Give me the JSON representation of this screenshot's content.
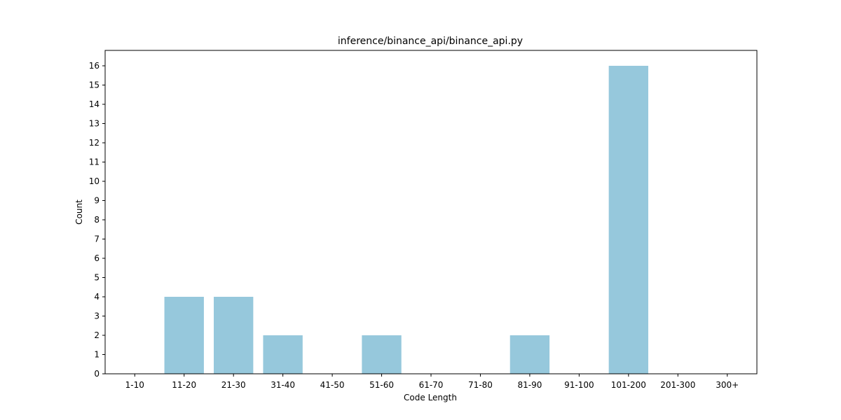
{
  "chart_data": {
    "type": "bar",
    "title": "inference/binance_api/binance_api.py",
    "xlabel": "Code Length",
    "ylabel": "Count",
    "categories": [
      "1-10",
      "11-20",
      "21-30",
      "31-40",
      "41-50",
      "51-60",
      "61-70",
      "71-80",
      "81-90",
      "91-100",
      "101-200",
      "201-300",
      "300+"
    ],
    "values": [
      0,
      4,
      4,
      2,
      0,
      2,
      0,
      0,
      2,
      0,
      16,
      0,
      0
    ],
    "ylim": [
      0,
      16.8
    ],
    "yticks": [
      0,
      1,
      2,
      3,
      4,
      5,
      6,
      7,
      8,
      9,
      10,
      11,
      12,
      13,
      14,
      15,
      16
    ],
    "bar_color": "#96c8dc",
    "grid": false,
    "legend": "none"
  }
}
